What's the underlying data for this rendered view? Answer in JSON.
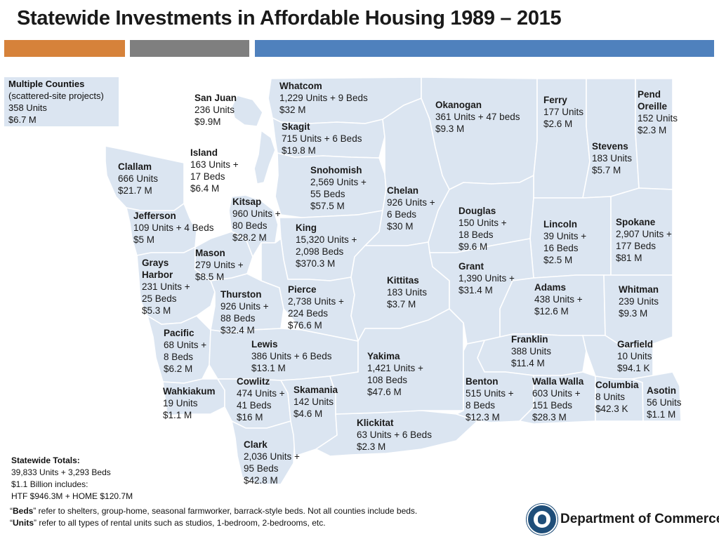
{
  "title": "Statewide Investments in Affordable Housing  1989 – 2015",
  "colors": {
    "orange_bar": "#d6823a",
    "gray_bar": "#7f7f7f",
    "blue_bar": "#4f81bd",
    "county_fill": "#dbe5f1"
  },
  "multiple_counties": {
    "name": "Multiple Counties",
    "sub": "(scattered-site projects)",
    "units": "358 Units",
    "amount": "$6.7 M"
  },
  "counties": {
    "whatcom": {
      "name": "Whatcom",
      "lines": [
        "1,229 Units + 9 Beds",
        "$32 M"
      ]
    },
    "sanjuan": {
      "name": "San Juan",
      "lines": [
        "236 Units",
        "$9.9M"
      ]
    },
    "skagit": {
      "name": "Skagit",
      "lines": [
        "715 Units + 6 Beds",
        "$19.8 M"
      ]
    },
    "okanogan": {
      "name": "Okanogan",
      "lines": [
        "361 Units + 47 beds",
        "$9.3 M"
      ]
    },
    "ferry": {
      "name": "Ferry",
      "lines": [
        "177 Units",
        "$2.6 M"
      ]
    },
    "pendoreille": {
      "name1": "Pend",
      "name2": "Oreille",
      "lines": [
        "152 Units",
        "$2.3 M"
      ]
    },
    "stevens": {
      "name": "Stevens",
      "lines": [
        "183 Units",
        "$5.7 M"
      ]
    },
    "island": {
      "name": "Island",
      "lines": [
        "163 Units +",
        "17 Beds",
        "$6.4 M"
      ]
    },
    "clallam": {
      "name": "Clallam",
      "lines": [
        "666 Units",
        "$21.7 M"
      ]
    },
    "snohomish": {
      "name": "Snohomish",
      "lines": [
        "2,569 Units +",
        "55 Beds",
        "$57.5 M"
      ]
    },
    "chelan": {
      "name": "Chelan",
      "lines": [
        "926 Units +",
        "6 Beds",
        "$30 M"
      ]
    },
    "kitsap": {
      "name": "Kitsap",
      "lines": [
        "960 Units +",
        "80 Beds",
        "$28.2 M"
      ]
    },
    "jefferson": {
      "name": "Jefferson",
      "lines": [
        "109 Units + 4 Beds",
        "$5 M"
      ]
    },
    "douglas": {
      "name": "Douglas",
      "lines": [
        "150 Units +",
        "18 Beds",
        "$9.6 M"
      ]
    },
    "lincoln": {
      "name": "Lincoln",
      "lines": [
        "39 Units +",
        "16 Beds",
        "$2.5 M"
      ]
    },
    "spokane": {
      "name": "Spokane",
      "lines": [
        "2,907 Units +",
        "177 Beds",
        "$81 M"
      ]
    },
    "king": {
      "name": "King",
      "lines": [
        "15,320 Units +",
        "2,098 Beds",
        "$370.3 M"
      ]
    },
    "mason": {
      "name": "Mason",
      "lines": [
        "279 Units +",
        "$8.5 M"
      ]
    },
    "graysharbor": {
      "name1": "Grays",
      "name2": "Harbor",
      "lines": [
        "231 Units +",
        "25 Beds",
        "$5.3 M"
      ]
    },
    "grant": {
      "name": "Grant",
      "lines": [
        "1,390 Units +",
        "$31.4 M"
      ]
    },
    "kittitas": {
      "name": "Kittitas",
      "lines": [
        "183 Units",
        "$3.7 M"
      ]
    },
    "adams": {
      "name": "Adams",
      "lines": [
        "438 Units +",
        "$12.6 M"
      ]
    },
    "whitman": {
      "name": "Whitman",
      "lines": [
        "239 Units",
        "$9.3 M"
      ]
    },
    "thurston": {
      "name": "Thurston",
      "lines": [
        "926 Units +",
        "88 Beds",
        "$32.4 M"
      ]
    },
    "pierce": {
      "name": "Pierce",
      "lines": [
        "2,738 Units +",
        "224 Beds",
        "$76.6 M"
      ]
    },
    "pacific": {
      "name": "Pacific",
      "lines": [
        "68 Units +",
        "8 Beds",
        "$6.2 M"
      ]
    },
    "lewis": {
      "name": "Lewis",
      "lines": [
        "386 Units + 6 Beds",
        "$13.1 M"
      ]
    },
    "yakima": {
      "name": "Yakima",
      "lines": [
        "1,421 Units +",
        "108 Beds",
        "$47.6 M"
      ]
    },
    "franklin": {
      "name": "Franklin",
      "lines": [
        "388 Units",
        "$11.4 M"
      ]
    },
    "garfield": {
      "name": "Garfield",
      "lines": [
        "10 Units",
        "$94.1 K"
      ]
    },
    "benton": {
      "name": "Benton",
      "lines": [
        "515 Units +",
        "8 Beds",
        "$12.3 M"
      ]
    },
    "wallawalla": {
      "name": "Walla Walla",
      "lines": [
        "603 Units +",
        "151 Beds",
        "$28.3 M"
      ]
    },
    "columbia": {
      "name": "Columbia",
      "lines": [
        "8 Units",
        "$42.3 K"
      ]
    },
    "asotin": {
      "name": "Asotin",
      "lines": [
        "56 Units",
        "$1.1 M"
      ]
    },
    "wahkiakum": {
      "name": "Wahkiakum",
      "lines": [
        "19 Units",
        "$1.1 M"
      ]
    },
    "cowlitz": {
      "name": "Cowlitz",
      "lines": [
        "474 Units +",
        "41 Beds",
        "$16 M"
      ]
    },
    "skamania": {
      "name": "Skamania",
      "lines": [
        "142 Units",
        "$4.6 M"
      ]
    },
    "klickitat": {
      "name": "Klickitat",
      "lines": [
        "63 Units + 6 Beds",
        "$2.3 M"
      ]
    },
    "clark": {
      "name": "Clark",
      "lines": [
        "2,036 Units +",
        "95 Beds",
        "$42.8 M"
      ]
    }
  },
  "totals": {
    "heading": "Statewide Totals:",
    "line1": "39,833 Units + 3,293 Beds",
    "line2": "$1.1 Billion includes:",
    "line3": "HTF $946.3M + HOME $120.7M"
  },
  "notes": {
    "beds_term": "Beds",
    "beds_text": " refer to shelters, group-home, seasonal farmworker, barrack-style beds. Not all counties include beds.",
    "units_term": "Units",
    "units_text": " refer to all types of rental units such as studios, 1-bedroom, 2-bedrooms, etc."
  },
  "logo": {
    "text": "Department of Commerce",
    "icon": "state-seal-icon"
  }
}
